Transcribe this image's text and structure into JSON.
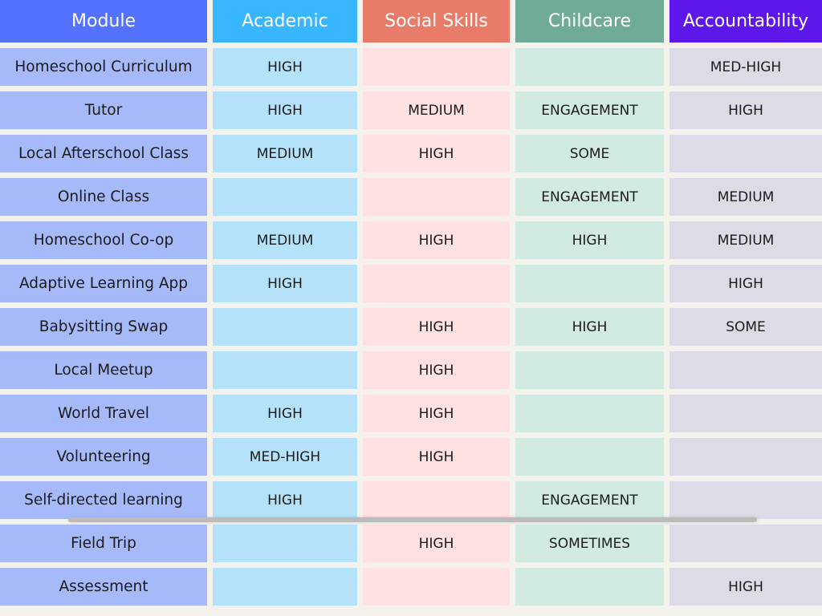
{
  "headers": {
    "module": "Module",
    "academic": "Academic",
    "social": "Social Skills",
    "childcare": "Childcare",
    "accountability": "Accountability"
  },
  "colors": {
    "module_header": "#5272ff",
    "academic_header": "#38b6ff",
    "social_header": "#e97c68",
    "childcare_header": "#6fab96",
    "accountability_header": "#5e17eb",
    "module_cell": "#a6b9f9",
    "academic_cell": "#b3e2fa",
    "social_cell": "#ffe1e2",
    "childcare_cell": "#d2ebe2",
    "accountability_cell": "#dddbe6",
    "background": "#f5f2ee"
  },
  "rows": [
    {
      "module": "Homeschool Curriculum",
      "academic": "HIGH",
      "social": "",
      "childcare": "",
      "accountability": "MED-HIGH"
    },
    {
      "module": "Tutor",
      "academic": "HIGH",
      "social": "MEDIUM",
      "childcare": "ENGAGEMENT",
      "accountability": "HIGH"
    },
    {
      "module": "Local Afterschool Class",
      "academic": "MEDIUM",
      "social": "HIGH",
      "childcare": "SOME",
      "accountability": ""
    },
    {
      "module": "Online Class",
      "academic": "",
      "social": "",
      "childcare": "ENGAGEMENT",
      "accountability": "MEDIUM"
    },
    {
      "module": "Homeschool Co-op",
      "academic": "MEDIUM",
      "social": "HIGH",
      "childcare": "HIGH",
      "accountability": "MEDIUM"
    },
    {
      "module": "Adaptive Learning App",
      "academic": "HIGH",
      "social": "",
      "childcare": "",
      "accountability": "HIGH"
    },
    {
      "module": "Babysitting Swap",
      "academic": "",
      "social": "HIGH",
      "childcare": "HIGH",
      "accountability": "SOME"
    },
    {
      "module": "Local Meetup",
      "academic": "",
      "social": "HIGH",
      "childcare": "",
      "accountability": ""
    },
    {
      "module": "World Travel",
      "academic": "HIGH",
      "social": "HIGH",
      "childcare": "",
      "accountability": ""
    },
    {
      "module": "Volunteering",
      "academic": "MED-HIGH",
      "social": "HIGH",
      "childcare": "",
      "accountability": ""
    },
    {
      "module": "Self-directed learning",
      "academic": "HIGH",
      "social": "",
      "childcare": "ENGAGEMENT",
      "accountability": ""
    },
    {
      "module": "Field Trip",
      "academic": "",
      "social": "HIGH",
      "childcare": "SOMETIMES",
      "accountability": ""
    },
    {
      "module": "Assessment",
      "academic": "",
      "social": "",
      "childcare": "",
      "accountability": "HIGH"
    }
  ]
}
